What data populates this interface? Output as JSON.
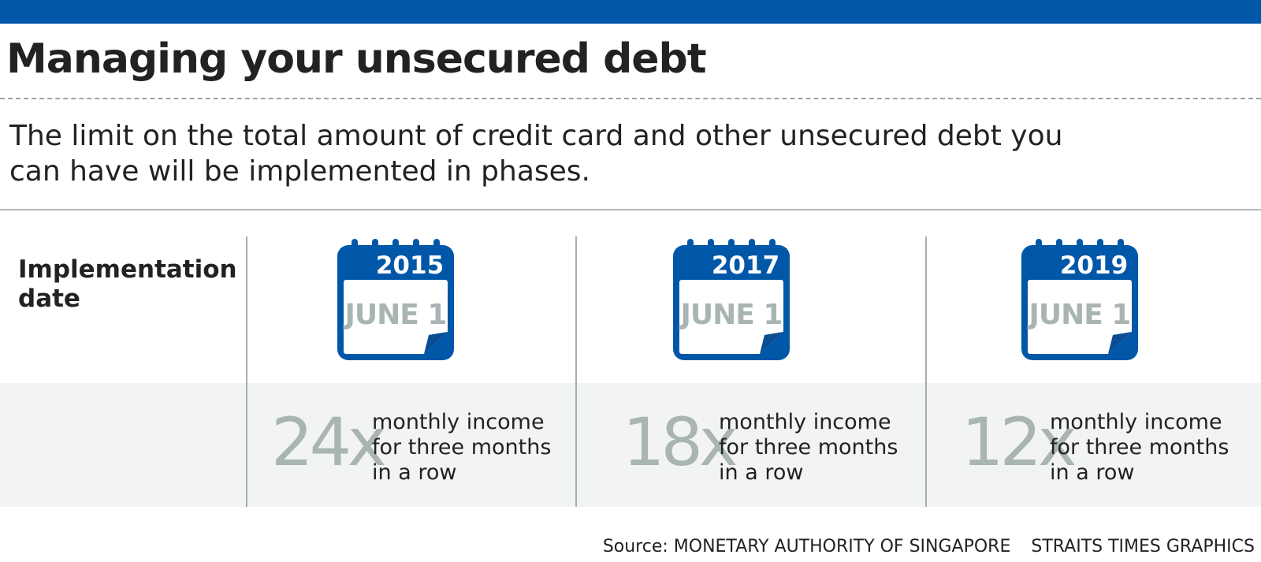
{
  "header": {
    "title": "Managing your unsecured debt",
    "subtitle": "The limit on the total amount of credit card and other unsecured debt you can have will be implemented in phases."
  },
  "table": {
    "row_label": "Implementation date",
    "phases": [
      {
        "year": "2015",
        "day": "JUNE 1",
        "multiplier": "24x",
        "description": "monthly income for three months in a row"
      },
      {
        "year": "2017",
        "day": "JUNE 1",
        "multiplier": "18x",
        "description": "monthly income for three months in a row"
      },
      {
        "year": "2019",
        "day": "JUNE 1",
        "multiplier": "12x",
        "description": "monthly income for three months in a row"
      }
    ]
  },
  "footer": {
    "source": "Source: MONETARY AUTHORITY OF SINGAPORE",
    "credit": "STRAITS TIMES GRAPHICS"
  },
  "icons": {
    "calendar": "calendar-icon"
  },
  "colors": {
    "brand_blue": "#0057a8",
    "muted_grey": "#a9b5b3",
    "band_grey": "#f2f4f4",
    "text": "#222222"
  }
}
